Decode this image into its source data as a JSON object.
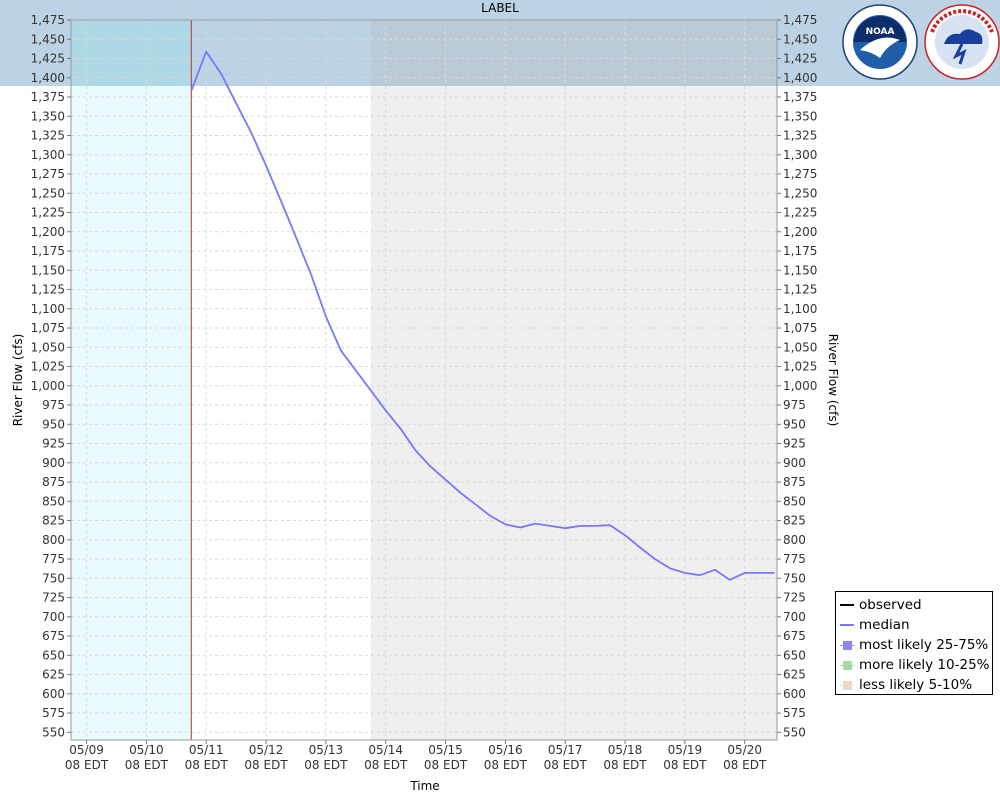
{
  "header": {
    "label": "LABEL"
  },
  "colors": {
    "header_band": "#bcd3e6",
    "observed_region": "#e9fbfc",
    "forecast_shade": "#efefef",
    "median_line": "#7777ff",
    "issuance_line": "#aa3333",
    "grid": "#d9d9d9"
  },
  "chart_data": {
    "type": "line",
    "title": "LABEL",
    "xlabel": "Time",
    "ylabel_left": "River Flow (cfs)",
    "ylabel_right": "River Flow (cfs)",
    "ylim": [
      540,
      1475
    ],
    "yticks": [
      550,
      575,
      600,
      625,
      650,
      675,
      700,
      725,
      750,
      775,
      800,
      825,
      850,
      875,
      900,
      925,
      950,
      975,
      1000,
      1025,
      1050,
      1075,
      1100,
      1125,
      1150,
      1175,
      1200,
      1225,
      1250,
      1275,
      1300,
      1325,
      1350,
      1375,
      1400,
      1425,
      1450,
      1475
    ],
    "ytick_labels": [
      "550",
      "575",
      "600",
      "625",
      "650",
      "675",
      "700",
      "725",
      "750",
      "775",
      "800",
      "825",
      "850",
      "875",
      "900",
      "925",
      "950",
      "975",
      "1,000",
      "1,025",
      "1,050",
      "1,075",
      "1,100",
      "1,125",
      "1,150",
      "1,175",
      "1,200",
      "1,225",
      "1,250",
      "1,275",
      "1,300",
      "1,325",
      "1,350",
      "1,375",
      "1,400",
      "1,425",
      "1,450",
      "1,475"
    ],
    "xlim_days": [
      -0.26,
      11.54
    ],
    "xticks": [
      {
        "day": 0,
        "line1": "05/09",
        "line2": "08 EDT"
      },
      {
        "day": 1,
        "line1": "05/10",
        "line2": "08 EDT"
      },
      {
        "day": 2,
        "line1": "05/11",
        "line2": "08 EDT"
      },
      {
        "day": 3,
        "line1": "05/12",
        "line2": "08 EDT"
      },
      {
        "day": 4,
        "line1": "05/13",
        "line2": "08 EDT"
      },
      {
        "day": 5,
        "line1": "05/14",
        "line2": "08 EDT"
      },
      {
        "day": 6,
        "line1": "05/15",
        "line2": "08 EDT"
      },
      {
        "day": 7,
        "line1": "05/16",
        "line2": "08 EDT"
      },
      {
        "day": 8,
        "line1": "05/17",
        "line2": "08 EDT"
      },
      {
        "day": 9,
        "line1": "05/18",
        "line2": "08 EDT"
      },
      {
        "day": 10,
        "line1": "05/19",
        "line2": "08 EDT"
      },
      {
        "day": 11,
        "line1": "05/20",
        "line2": "08 EDT"
      }
    ],
    "observed_period_days": [
      -0.26,
      1.75
    ],
    "forecast_shaded_days": [
      4.75,
      11.54
    ],
    "issuance_day": 1.75,
    "grid": true,
    "legend_position": "right",
    "series": [
      {
        "name": "median",
        "x_days": [
          1.75,
          2.0,
          2.25,
          2.5,
          2.75,
          3.0,
          3.25,
          3.5,
          3.75,
          4.0,
          4.25,
          4.5,
          4.75,
          5.0,
          5.25,
          5.5,
          5.75,
          6.0,
          6.25,
          6.5,
          6.75,
          7.0,
          7.25,
          7.5,
          7.75,
          8.0,
          8.25,
          8.5,
          8.75,
          9.0,
          9.25,
          9.5,
          9.75,
          10.0,
          10.25,
          10.5,
          10.75,
          11.0,
          11.25,
          11.5
        ],
        "values": [
          1383,
          1434,
          1405,
          1367,
          1329,
          1286,
          1240,
          1193,
          1145,
          1090,
          1046,
          1020,
          994,
          968,
          944,
          916,
          895,
          878,
          861,
          846,
          831,
          820,
          816,
          821,
          818,
          815,
          818,
          818,
          819,
          806,
          790,
          775,
          763,
          757,
          754,
          761,
          748,
          757,
          757,
          757
        ]
      }
    ],
    "legend": [
      {
        "label": "observed",
        "kind": "line",
        "color": "#000000"
      },
      {
        "label": "median",
        "kind": "line",
        "color": "#7777ff"
      },
      {
        "label": "most likely 25-75%",
        "kind": "box",
        "color": "#8888ee"
      },
      {
        "label": "more likely 10-25%",
        "kind": "box",
        "color": "#a8d8a8"
      },
      {
        "label": "less likely 5-10%",
        "kind": "box",
        "color": "#eed9c4"
      }
    ]
  },
  "logos": [
    {
      "name": "noaa-logo",
      "text": "NOAA",
      "ring_text": "NATIONAL OCEANIC AND ATMOSPHERIC ADMINISTRATION"
    },
    {
      "name": "nws-logo",
      "text": "NATIONAL WEATHER SERVICE"
    }
  ]
}
